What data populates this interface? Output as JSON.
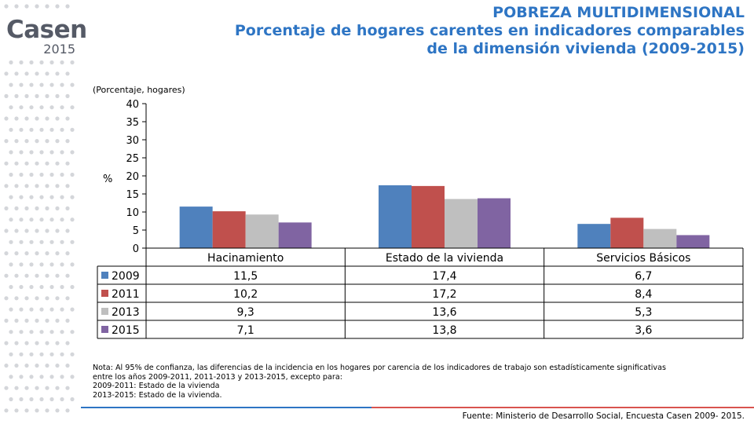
{
  "brand": {
    "name": "Casen",
    "year": "2015"
  },
  "title": {
    "line1": "POBREZA MULTIDIMENSIONAL",
    "line2": "Porcentaje de hogares carentes en indicadores comparables",
    "line3": "de la dimensión vivienda (2009-2015)"
  },
  "chart_data": {
    "type": "bar",
    "subtitle": "(Porcentaje, hogares)",
    "ylabel": "%",
    "ylim": [
      0,
      40
    ],
    "yticks": [
      "0",
      "5",
      "10",
      "15",
      "20",
      "25",
      "30",
      "35",
      "40"
    ],
    "categories": [
      "Hacinamiento",
      "Estado de la vivienda",
      "Servicios Básicos"
    ],
    "series": [
      {
        "name": "2009",
        "color": "#4f81bd",
        "values": [
          11.5,
          17.4,
          6.7
        ],
        "labels": [
          "11,5",
          "17,4",
          "6,7"
        ]
      },
      {
        "name": "2011",
        "color": "#c0504d",
        "values": [
          10.2,
          17.2,
          8.4
        ],
        "labels": [
          "10,2",
          "17,2",
          "8,4"
        ]
      },
      {
        "name": "2013",
        "color": "#bfbfbf",
        "values": [
          9.3,
          13.6,
          5.3
        ],
        "labels": [
          "9,3",
          "13,6",
          "5,3"
        ]
      },
      {
        "name": "2015",
        "color": "#8064a2",
        "values": [
          7.1,
          13.8,
          3.6
        ],
        "labels": [
          "7,1",
          "13,8",
          "3,6"
        ]
      }
    ],
    "grid": false,
    "legend": "data-table-left"
  },
  "note": {
    "line1": "Nota: Al 95% de confianza, las diferencias de la incidencia en los hogares por carencia de los indicadores de trabajo son estadísticamente significativas",
    "line2": "entre los años 2009-2011, 2011-2013 y 2013-2015, excepto para:",
    "line3": "2009-2011: Estado de la vivienda",
    "line4": "2013-2015: Estado de la vivienda."
  },
  "source": "Fuente: Ministerio de Desarrollo Social, Encuesta Casen 2009- 2015."
}
